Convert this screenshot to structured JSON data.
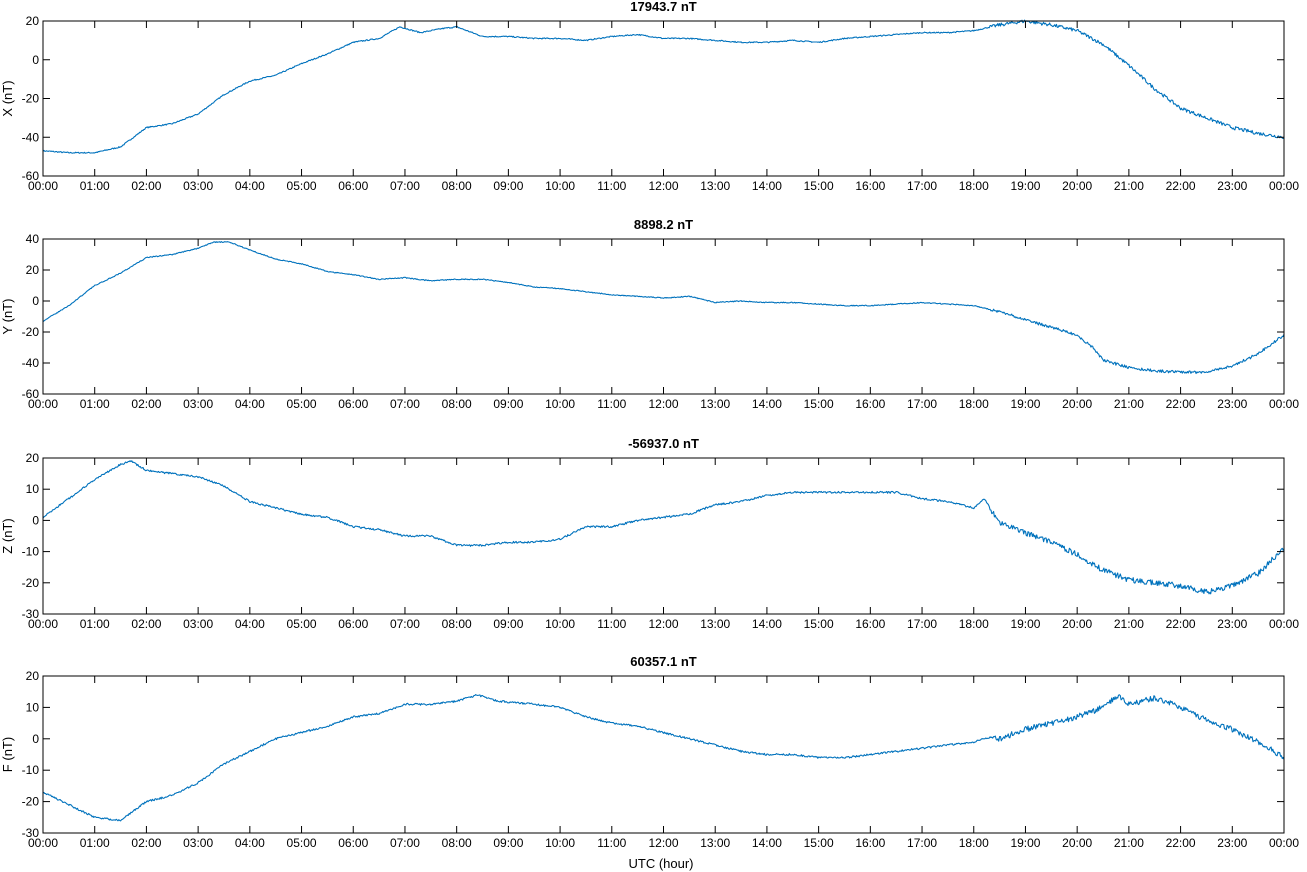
{
  "figure": {
    "xlabel": "UTC (hour)",
    "x_tick_labels": [
      "00:00",
      "01:00",
      "02:00",
      "03:00",
      "04:00",
      "05:00",
      "06:00",
      "07:00",
      "08:00",
      "09:00",
      "10:00",
      "11:00",
      "12:00",
      "13:00",
      "14:00",
      "15:00",
      "16:00",
      "17:00",
      "18:00",
      "19:00",
      "20:00",
      "21:00",
      "22:00",
      "23:00",
      "00:00"
    ],
    "trace_color": "#0072BD"
  },
  "chart_data": [
    {
      "type": "line",
      "title": "17943.7 nT",
      "ylabel": "X (nT)",
      "xlim": [
        0,
        24
      ],
      "ylim": [
        -60,
        20
      ],
      "yticks": [
        -60,
        -40,
        -20,
        0,
        20
      ],
      "grid": false,
      "series": [
        {
          "x": [
            0,
            0.5,
            1,
            1.5,
            2,
            2.5,
            3,
            3.5,
            4,
            4.5,
            5,
            5.5,
            6,
            6.5,
            6.9,
            7.3,
            7.7,
            8.0,
            8.5,
            9,
            9.5,
            10,
            10.5,
            11,
            11.5,
            12,
            12.5,
            13,
            13.5,
            14,
            14.5,
            15,
            15.5,
            16,
            16.5,
            17,
            17.5,
            18,
            18.5,
            19,
            19.5,
            20,
            20.5,
            21,
            21.5,
            22,
            22.5,
            23,
            23.5,
            24
          ],
          "y": [
            -47,
            -48,
            -48,
            -45,
            -35,
            -33,
            -28,
            -18,
            -11,
            -8,
            -2,
            3,
            9,
            11,
            17,
            14,
            16,
            17,
            12,
            12,
            11,
            11,
            10,
            12,
            13,
            11,
            11,
            10,
            9,
            9,
            10,
            9,
            11,
            12,
            13,
            14,
            14,
            15,
            18,
            20,
            18,
            15,
            8,
            -3,
            -15,
            -25,
            -30,
            -35,
            -38,
            -40
          ]
        }
      ]
    },
    {
      "type": "line",
      "title": "8898.2 nT",
      "ylabel": "Y (nT)",
      "xlim": [
        0,
        24
      ],
      "ylim": [
        -60,
        40
      ],
      "yticks": [
        -60,
        -40,
        -20,
        0,
        20,
        40
      ],
      "grid": false,
      "series": [
        {
          "x": [
            0,
            0.5,
            1,
            1.5,
            2,
            2.5,
            3,
            3.3,
            3.6,
            4,
            4.5,
            5,
            5.5,
            6,
            6.5,
            7,
            7.5,
            8,
            8.5,
            9,
            9.5,
            10,
            10.5,
            11,
            11.5,
            12,
            12.5,
            13,
            13.5,
            14,
            14.5,
            15,
            15.5,
            16,
            16.5,
            17,
            17.5,
            18,
            18.5,
            19,
            19.5,
            20,
            20.3,
            20.5,
            21,
            21.5,
            22,
            22.5,
            23,
            23.5,
            24
          ],
          "y": [
            -13,
            -3,
            10,
            18,
            28,
            30,
            34,
            38,
            38,
            33,
            27,
            24,
            19,
            17,
            14,
            15,
            13,
            14,
            14,
            12,
            9,
            8,
            6,
            4,
            3,
            2,
            3,
            -1,
            0,
            -1,
            -1,
            -2,
            -3,
            -3,
            -2,
            -1,
            -2,
            -3,
            -7,
            -12,
            -17,
            -22,
            -30,
            -38,
            -43,
            -45,
            -46,
            -46,
            -42,
            -34,
            -22
          ]
        }
      ]
    },
    {
      "type": "line",
      "title": "-56937.0 nT",
      "ylabel": "Z (nT)",
      "xlim": [
        0,
        24
      ],
      "ylim": [
        -30,
        20
      ],
      "yticks": [
        -30,
        -20,
        -10,
        0,
        10,
        20
      ],
      "grid": false,
      "series": [
        {
          "x": [
            0,
            0.5,
            1,
            1.5,
            1.7,
            2,
            2.5,
            3,
            3.5,
            4,
            4.5,
            5,
            5.5,
            6,
            6.5,
            7,
            7.5,
            8,
            8.5,
            9,
            9.5,
            10,
            10.5,
            11,
            11.5,
            12,
            12.5,
            13,
            13.5,
            14,
            14.5,
            15,
            15.5,
            16,
            16.5,
            17,
            17.5,
            18,
            18.2,
            18.5,
            19,
            19.5,
            20,
            20.5,
            21,
            21.5,
            22,
            22.5,
            23,
            23.5,
            24
          ],
          "y": [
            1,
            7,
            13,
            18,
            19,
            16,
            15,
            14,
            11,
            6,
            4,
            2,
            1,
            -2,
            -3,
            -5,
            -5,
            -8,
            -8,
            -7,
            -7,
            -6,
            -2,
            -2,
            0,
            1,
            2,
            5,
            6,
            8,
            9,
            9,
            9,
            9,
            9,
            7,
            6,
            4,
            7,
            -1,
            -4,
            -7,
            -11,
            -16,
            -19,
            -20,
            -21,
            -23,
            -21,
            -17,
            -9
          ]
        }
      ]
    },
    {
      "type": "line",
      "title": "60357.1 nT",
      "ylabel": "F (nT)",
      "xlim": [
        0,
        24
      ],
      "ylim": [
        -30,
        20
      ],
      "yticks": [
        -30,
        -20,
        -10,
        0,
        10,
        20
      ],
      "grid": false,
      "series": [
        {
          "x": [
            0,
            0.5,
            1,
            1.5,
            2,
            2.5,
            3,
            3.5,
            4,
            4.5,
            5,
            5.5,
            6,
            6.5,
            7,
            7.5,
            8,
            8.4,
            8.8,
            9.5,
            10,
            10.5,
            11,
            11.5,
            12,
            12.5,
            13,
            13.5,
            14,
            14.5,
            15,
            15.5,
            16,
            16.5,
            17,
            17.5,
            18,
            18.2,
            18.5,
            19,
            19.5,
            20,
            20.5,
            20.8,
            21,
            21.5,
            22,
            22.5,
            23,
            23.5,
            24
          ],
          "y": [
            -17,
            -21,
            -25,
            -26,
            -20,
            -18,
            -14,
            -8,
            -4,
            0,
            2,
            4,
            7,
            8,
            11,
            11,
            12,
            14,
            12,
            11,
            10,
            7,
            5,
            4,
            2,
            0,
            -2,
            -4,
            -5,
            -5,
            -6,
            -6,
            -5,
            -4,
            -3,
            -2,
            -1,
            0,
            0,
            3,
            5,
            7,
            10,
            14,
            11,
            13,
            10,
            6,
            3,
            -1,
            -6
          ]
        }
      ]
    }
  ]
}
